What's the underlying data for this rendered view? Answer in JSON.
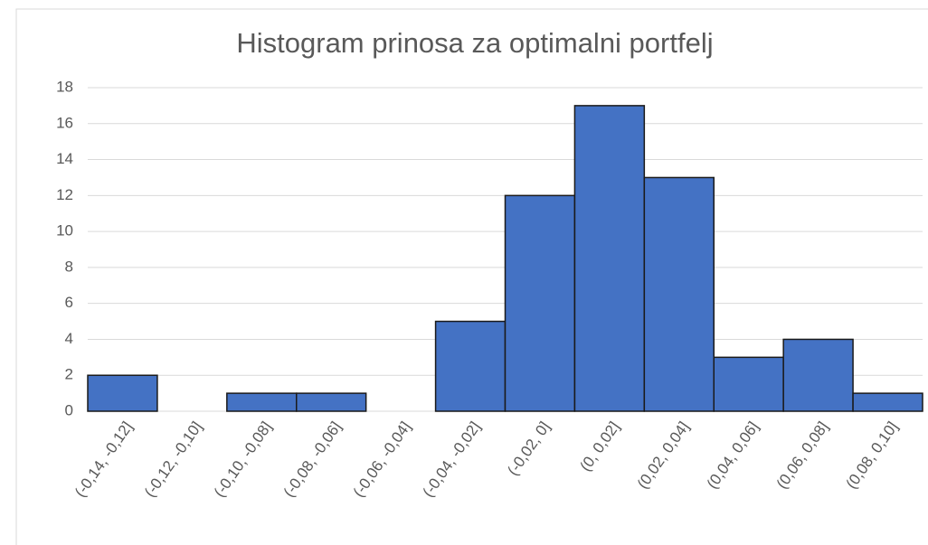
{
  "chart_data": {
    "type": "bar",
    "title": "Histogram prinosa za optimalni portfelj",
    "categories": [
      "(-0,14, -0,12]",
      "(-0,12, -0,10]",
      "(-0,10, -0,08]",
      "(-0,08, -0,06]",
      "(-0,06, -0,04]",
      "(-0,04, -0,02]",
      "(-0,02, 0]",
      "(0, 0,02]",
      "(0,02, 0,04]",
      "(0,04, 0,06]",
      "(0,06, 0,08]",
      "(0,08, 0,10]"
    ],
    "values": [
      2,
      0,
      1,
      1,
      0,
      5,
      12,
      17,
      13,
      3,
      4,
      1
    ],
    "color": "#4472c4",
    "ylim": [
      0,
      18
    ],
    "yticks": [
      0,
      2,
      4,
      6,
      8,
      10,
      12,
      14,
      16,
      18
    ],
    "grid": true
  }
}
